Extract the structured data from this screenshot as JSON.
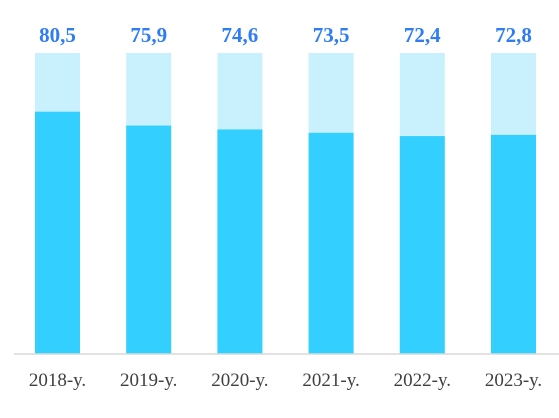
{
  "chart_data": {
    "type": "bar",
    "categories": [
      "2018-y.",
      "2019-y.",
      "2020-y.",
      "2021-y.",
      "2022-y.",
      "2023-y."
    ],
    "values": [
      80.5,
      75.9,
      74.6,
      73.5,
      72.4,
      72.8
    ],
    "value_labels": [
      "80,5",
      "75,9",
      "74,6",
      "73,5",
      "72,4",
      "72,8"
    ],
    "ylim": [
      0,
      100
    ],
    "grid": false,
    "colors": {
      "bar_fill": "#33d0ff",
      "bar_background": "#c8f1fd",
      "value_label": "#2e7cf6",
      "axis_line": "#d9d9d9"
    }
  }
}
